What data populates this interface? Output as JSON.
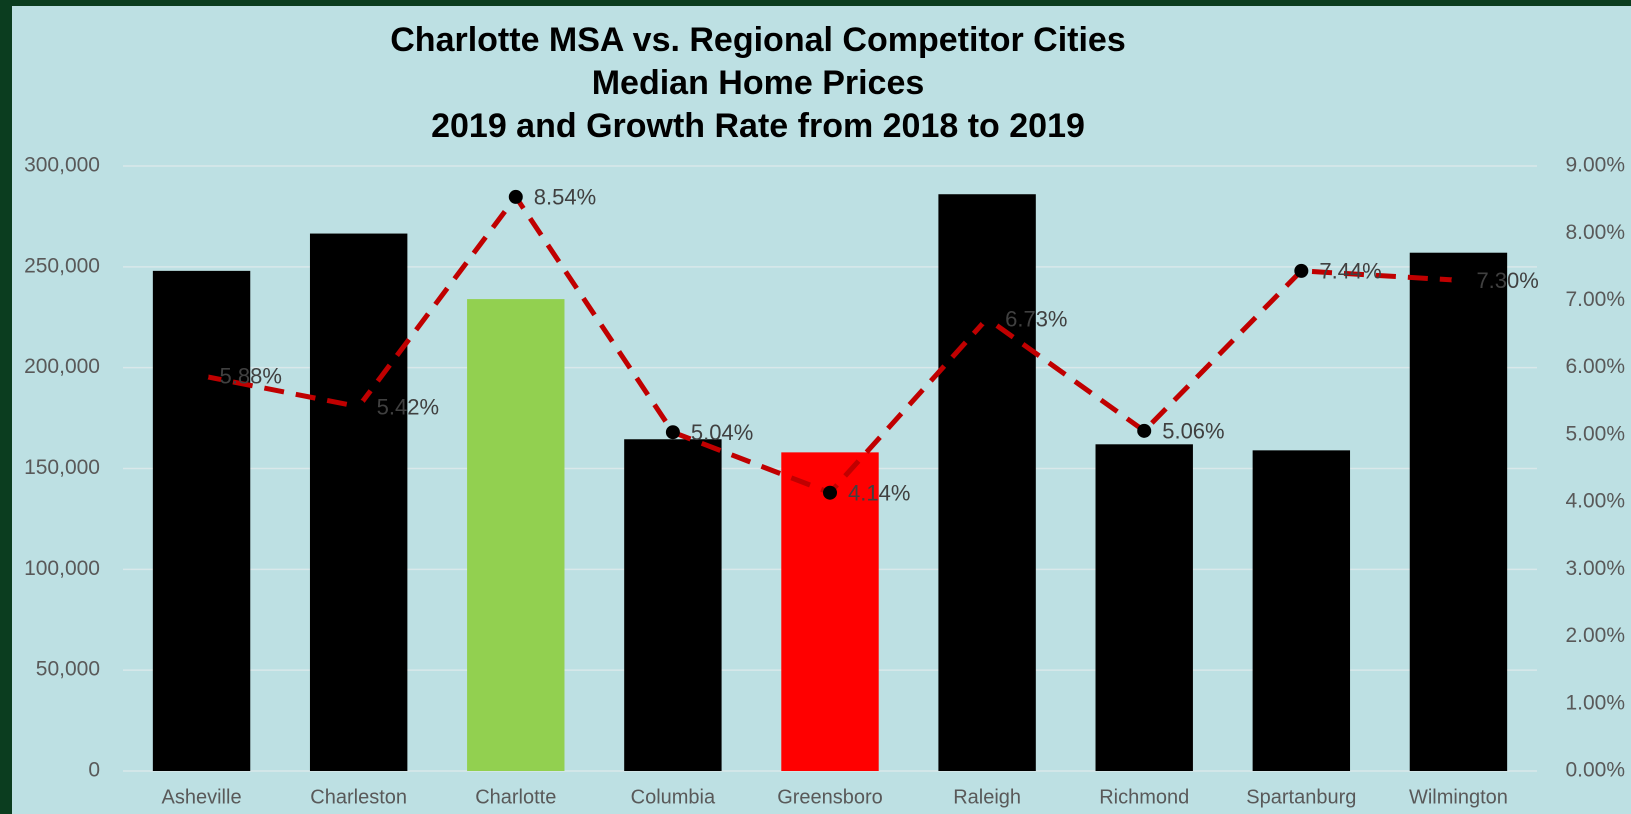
{
  "chart_data": {
    "type": "bar",
    "title": [
      "Charlotte MSA vs. Regional Competitor Cities",
      "Median Home Prices",
      "2019 and Growth Rate from 2018 to 2019"
    ],
    "categories": [
      "Asheville",
      "Charleston",
      "Charlotte",
      "Columbia",
      "Greensboro",
      "Raleigh",
      "Richmond",
      "Spartanburg",
      "Wilmington"
    ],
    "series": [
      {
        "type": "bar",
        "colors": [
          "#000000",
          "#000000",
          "#92d050",
          "#000000",
          "#ff0000",
          "#000000",
          "#000000",
          "#000000",
          "#000000"
        ],
        "values": [
          248000,
          266500,
          234000,
          164500,
          158000,
          286000,
          162000,
          159000,
          257000
        ]
      },
      {
        "type": "line",
        "axis": "y2",
        "color": "#c00000",
        "marker_color": "#000000",
        "values": [
          5.88,
          5.42,
          8.54,
          5.04,
          4.14,
          6.73,
          5.06,
          7.44,
          7.3
        ],
        "value_labels": [
          "5.88%",
          "5.42%",
          "8.54%",
          "5.04%",
          "4.14%",
          "6.73%",
          "5.06%",
          "7.44%",
          "7.30%"
        ]
      }
    ],
    "ylim": [
      0,
      300000
    ],
    "yticks": [
      0,
      {
        "value": 50000,
        "label": "50,000"
      },
      {
        "value": 100000,
        "label": "100,000"
      },
      {
        "value": 150000,
        "label": "150,000"
      },
      {
        "value": 200000,
        "label": "200,000"
      },
      {
        "value": 250000,
        "label": "250,000"
      },
      {
        "value": 300000,
        "label": "300,000"
      }
    ],
    "y2lim": [
      0,
      9
    ],
    "y2ticks": [
      {
        "value": 0,
        "label": "0.00%"
      },
      {
        "value": 1,
        "label": "1.00%"
      },
      {
        "value": 2,
        "label": "2.00%"
      },
      {
        "value": 3,
        "label": "3.00%"
      },
      {
        "value": 4,
        "label": "4.00%"
      },
      {
        "value": 5,
        "label": "5.00%"
      },
      {
        "value": 6,
        "label": "6.00%"
      },
      {
        "value": 7,
        "label": "7.00%"
      },
      {
        "value": 8,
        "label": "8.00%"
      },
      {
        "value": 9,
        "label": "9.00%"
      }
    ],
    "grid": true
  }
}
